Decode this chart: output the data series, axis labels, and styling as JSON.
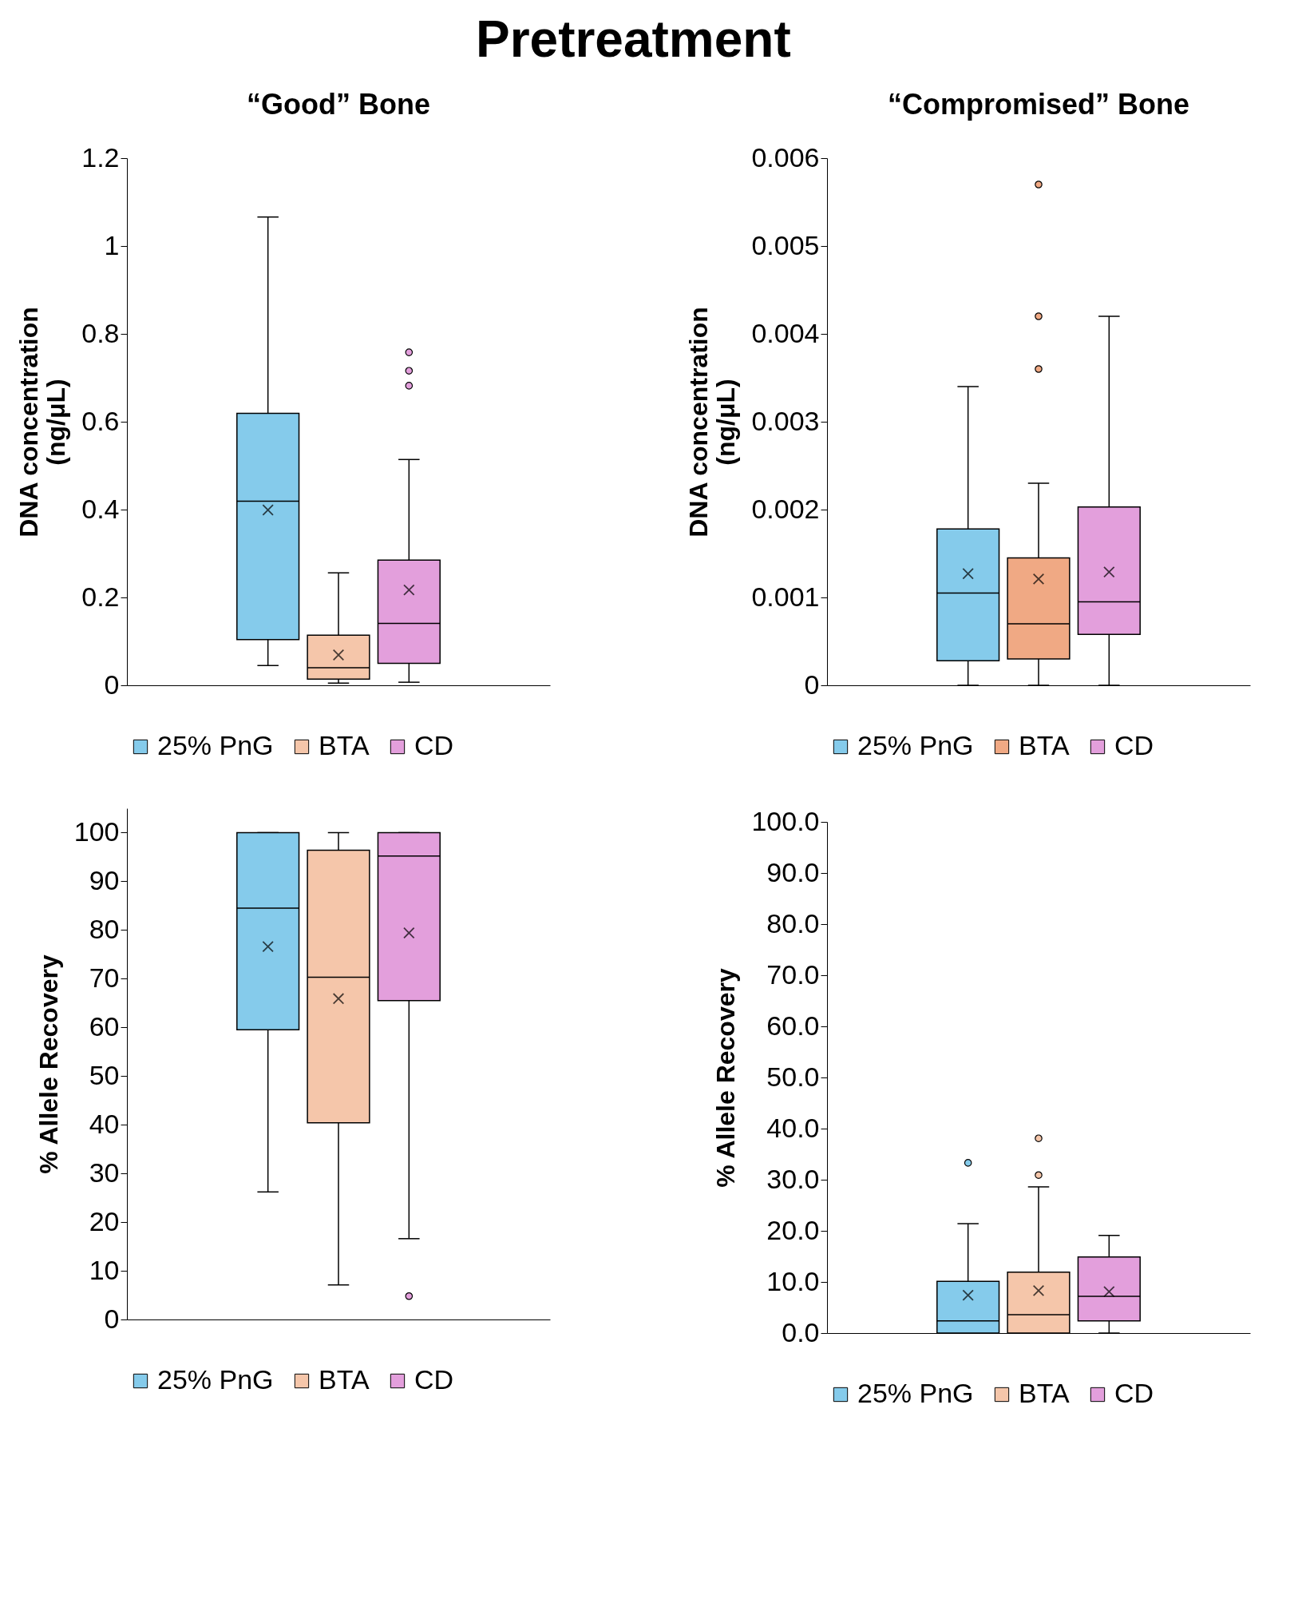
{
  "chart_data": [
    {
      "type": "box",
      "title": "Pretreatment",
      "subtitle": "“Good” Bone",
      "ylabel": "DNA concentration\n(ng/μL)",
      "categories": [
        null
      ],
      "ylim": [
        0,
        1.2
      ],
      "yticks": [
        0,
        0.2,
        0.4,
        0.6,
        0.8,
        1,
        1.2
      ],
      "legend": "bottom",
      "tick_labels": "y",
      "marker": "circle",
      "series": [
        {
          "name": "25% PnG",
          "color": "#85cbeb",
          "boxes": [
            {
              "low": 0.045,
              "q1": 0.104,
              "median": 0.419,
              "q3": 0.619,
              "high": 1.066,
              "mean": 0.399
            }
          ]
        },
        {
          "name": "BTA",
          "color": "#f5c6aa",
          "boxes": [
            {
              "low": 0.005,
              "q1": 0.014,
              "median": 0.04,
              "q3": 0.114,
              "high": 0.256,
              "mean": 0.069
            }
          ]
        },
        {
          "name": "CD",
          "color": "#e39fdc",
          "boxes": [
            {
              "low": 0.007,
              "q1": 0.05,
              "median": 0.141,
              "q3": 0.285,
              "high": 0.514,
              "mean": 0.217,
              "outliers": [
                0.682,
                0.716,
                0.758
              ]
            }
          ]
        }
      ]
    },
    {
      "type": "box",
      "title": "“Compromised” Bone",
      "ylabel": "DNA concentration\n(ng/μL)",
      "categories": [
        null
      ],
      "ylim": [
        0,
        0.006
      ],
      "yticks": [
        0,
        0.001,
        0.002,
        0.003,
        0.004,
        0.005,
        0.006
      ],
      "legend": "bottom",
      "tick_labels": "y",
      "marker": "circle",
      "series": [
        {
          "name": "25% PnG",
          "color": "#85cbeb",
          "boxes": [
            {
              "low": 0,
              "q1": 0.00028,
              "median": 0.00105,
              "q3": 0.00178,
              "high": 0.0034,
              "mean": 0.00127
            }
          ]
        },
        {
          "name": "BTA",
          "color": "#f0a984",
          "boxes": [
            {
              "low": 0,
              "q1": 0.0003,
              "median": 0.0007,
              "q3": 0.00145,
              "high": 0.0023,
              "mean": 0.00121,
              "outliers": [
                0.0036,
                0.0042,
                0.0057
              ]
            }
          ]
        },
        {
          "name": "CD",
          "color": "#e39fdc",
          "boxes": [
            {
              "low": 0,
              "q1": 0.00058,
              "median": 0.00095,
              "q3": 0.00203,
              "high": 0.0042,
              "mean": 0.00129
            }
          ]
        }
      ]
    },
    {
      "type": "box",
      "ylabel": "% Allele Recovery",
      "categories": [
        null
      ],
      "ylim": [
        0,
        105
      ],
      "yticks": [
        0,
        10,
        20,
        30,
        40,
        50,
        60,
        70,
        80,
        90,
        100
      ],
      "legend": "bottom",
      "tick_labels": "y",
      "marker": "circle",
      "series": [
        {
          "name": "25% PnG",
          "color": "#85cbeb",
          "boxes": [
            {
              "low": 26.2,
              "q1": 59.5,
              "median": 84.5,
              "q3": 100,
              "high": 100,
              "mean": 76.6
            }
          ]
        },
        {
          "name": "BTA",
          "color": "#f5c6aa",
          "boxes": [
            {
              "low": 7.1,
              "q1": 40.4,
              "median": 70.3,
              "q3": 96.4,
              "high": 100,
              "mean": 65.9
            }
          ]
        },
        {
          "name": "CD",
          "color": "#e39fdc",
          "boxes": [
            {
              "low": 16.6,
              "q1": 65.5,
              "median": 95.2,
              "q3": 100,
              "high": 100,
              "mean": 79.4,
              "outliers": [
                4.8
              ]
            }
          ]
        }
      ]
    },
    {
      "type": "box",
      "ylabel": "% Allele Recovery",
      "categories": [
        null
      ],
      "ylim": [
        0,
        100
      ],
      "yticks": [
        {
          "value": 0,
          "label": "0.0"
        },
        {
          "value": 10,
          "label": "10.0"
        },
        {
          "value": 20,
          "label": "20.0"
        },
        {
          "value": 30,
          "label": "30.0"
        },
        {
          "value": 40,
          "label": "40.0"
        },
        {
          "value": 50,
          "label": "50.0"
        },
        {
          "value": 60,
          "label": "60.0"
        },
        {
          "value": 70,
          "label": "70.0"
        },
        {
          "value": 80,
          "label": "80.0"
        },
        {
          "value": 90,
          "label": "90.0"
        },
        {
          "value": 100,
          "label": "100.0"
        }
      ],
      "legend": "bottom",
      "tick_labels": "y",
      "marker": "circle",
      "series": [
        {
          "name": "25% PnG",
          "color": "#85cbeb",
          "boxes": [
            {
              "low": 0,
              "q1": 0,
              "median": 2.4,
              "q3": 10.1,
              "high": 21.4,
              "mean": 7.4,
              "outliers": [
                33.3
              ]
            }
          ]
        },
        {
          "name": "BTA",
          "color": "#f5c6aa",
          "boxes": [
            {
              "low": 0,
              "q1": 0,
              "median": 3.6,
              "q3": 11.9,
              "high": 28.6,
              "mean": 8.3,
              "outliers": [
                30.9,
                38.1
              ]
            }
          ]
        },
        {
          "name": "CD",
          "color": "#e39fdc",
          "boxes": [
            {
              "low": 0,
              "q1": 2.4,
              "median": 7.2,
              "q3": 14.9,
              "high": 19.1,
              "mean": 8.1
            }
          ]
        }
      ]
    }
  ]
}
